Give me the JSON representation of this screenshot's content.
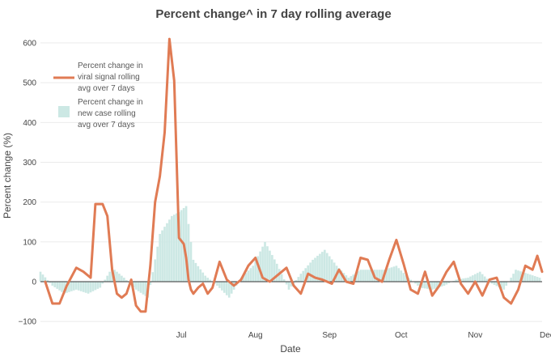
{
  "chart_data": {
    "type": "line",
    "title": "Percent change^ in 7 day rolling average",
    "xlabel": "Date",
    "ylabel": "Percent change (%)",
    "x_tick_labels": [
      "Jul",
      "Aug",
      "Sep",
      "Oct",
      "Nov",
      "Dec"
    ],
    "y_ticks": [
      -100,
      0,
      100,
      200,
      300,
      400,
      500,
      600
    ],
    "ylim": [
      -110,
      620
    ],
    "x_start": "2021-05-17",
    "x_end": "2021-12-13",
    "grid": true,
    "legend_position": "top-left",
    "colors": {
      "line": "#e07b54",
      "bars": "#cce8e4",
      "zero_line": "#333333"
    },
    "series": [
      {
        "name": "Percent change in viral signal rolling avg over 7 days",
        "kind": "line",
        "x": [
          "2021-05-19",
          "2021-05-22",
          "2021-05-25",
          "2021-05-28",
          "2021-06-01",
          "2021-06-04",
          "2021-06-07",
          "2021-06-09",
          "2021-06-12",
          "2021-06-14",
          "2021-06-16",
          "2021-06-18",
          "2021-06-20",
          "2021-06-22",
          "2021-06-24",
          "2021-06-26",
          "2021-06-28",
          "2021-06-30",
          "2021-07-02",
          "2021-07-04",
          "2021-07-06",
          "2021-07-08",
          "2021-07-10",
          "2021-07-12",
          "2021-07-14",
          "2021-07-16",
          "2021-07-17",
          "2021-07-18",
          "2021-07-19",
          "2021-07-20",
          "2021-07-22",
          "2021-07-24",
          "2021-07-26",
          "2021-07-28",
          "2021-07-31",
          "2021-08-03",
          "2021-08-06",
          "2021-08-09",
          "2021-08-12",
          "2021-08-15",
          "2021-08-18",
          "2021-08-21",
          "2021-08-25",
          "2021-08-28",
          "2021-08-31",
          "2021-09-03",
          "2021-09-06",
          "2021-09-09",
          "2021-09-12",
          "2021-09-16",
          "2021-09-19",
          "2021-09-22",
          "2021-09-25",
          "2021-09-28",
          "2021-10-01",
          "2021-10-04",
          "2021-10-07",
          "2021-10-10",
          "2021-10-13",
          "2021-10-16",
          "2021-10-19",
          "2021-10-22",
          "2021-10-25",
          "2021-10-28",
          "2021-10-31",
          "2021-11-03",
          "2021-11-06",
          "2021-11-09",
          "2021-11-12",
          "2021-11-15",
          "2021-11-18",
          "2021-11-21",
          "2021-11-24",
          "2021-11-27",
          "2021-11-30",
          "2021-12-03",
          "2021-12-06",
          "2021-12-09",
          "2021-12-11",
          "2021-12-13"
        ],
        "values": [
          0,
          -55,
          -55,
          -10,
          35,
          25,
          10,
          195,
          195,
          165,
          30,
          -30,
          -40,
          -30,
          5,
          -60,
          -75,
          -75,
          40,
          200,
          265,
          375,
          610,
          505,
          110,
          95,
          60,
          5,
          -20,
          -30,
          -15,
          -5,
          -30,
          -15,
          50,
          5,
          -10,
          5,
          40,
          60,
          10,
          0,
          20,
          35,
          -10,
          -30,
          20,
          10,
          5,
          -5,
          30,
          0,
          -5,
          60,
          55,
          10,
          0,
          55,
          105,
          45,
          -20,
          -30,
          25,
          -35,
          -10,
          25,
          50,
          -5,
          -30,
          0,
          -35,
          5,
          10,
          -40,
          -55,
          -20,
          40,
          30,
          65,
          25
        ]
      },
      {
        "name": "Percent change in new case rolling avg over 7 days",
        "kind": "bar",
        "x": [
          "2021-05-17",
          "2021-05-22",
          "2021-05-27",
          "2021-06-01",
          "2021-06-06",
          "2021-06-11",
          "2021-06-16",
          "2021-06-21",
          "2021-06-26",
          "2021-07-01",
          "2021-07-06",
          "2021-07-11",
          "2021-07-14",
          "2021-07-17",
          "2021-07-20",
          "2021-07-25",
          "2021-07-30",
          "2021-08-04",
          "2021-08-09",
          "2021-08-14",
          "2021-08-19",
          "2021-08-24",
          "2021-08-29",
          "2021-09-03",
          "2021-09-08",
          "2021-09-13",
          "2021-09-18",
          "2021-09-23",
          "2021-09-28",
          "2021-10-03",
          "2021-10-08",
          "2021-10-13",
          "2021-10-18",
          "2021-10-23",
          "2021-10-28",
          "2021-11-02",
          "2021-11-07",
          "2021-11-12",
          "2021-11-17",
          "2021-11-22",
          "2021-11-27",
          "2021-12-02",
          "2021-12-07",
          "2021-12-12"
        ],
        "values": [
          25,
          -10,
          -30,
          -20,
          -30,
          -15,
          35,
          10,
          -20,
          -40,
          120,
          165,
          175,
          190,
          55,
          15,
          -10,
          -40,
          10,
          40,
          100,
          45,
          -20,
          20,
          55,
          80,
          40,
          10,
          30,
          30,
          30,
          40,
          10,
          -15,
          -20,
          -10,
          5,
          10,
          25,
          -5,
          -20,
          30,
          20,
          10
        ]
      }
    ]
  }
}
